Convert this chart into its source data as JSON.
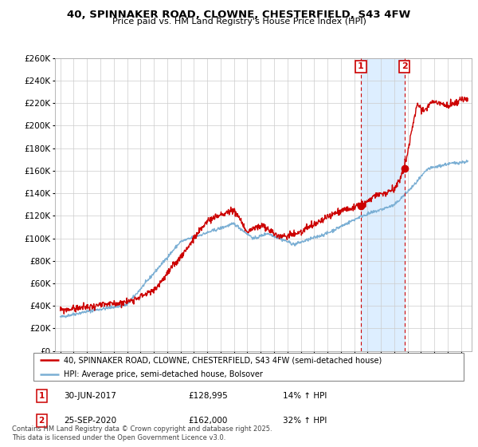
{
  "title_line1": "40, SPINNAKER ROAD, CLOWNE, CHESTERFIELD, S43 4FW",
  "title_line2": "Price paid vs. HM Land Registry's House Price Index (HPI)",
  "red_label": "40, SPINNAKER ROAD, CLOWNE, CHESTERFIELD, S43 4FW (semi-detached house)",
  "blue_label": "HPI: Average price, semi-detached house, Bolsover",
  "footnote": "Contains HM Land Registry data © Crown copyright and database right 2025.\nThis data is licensed under the Open Government Licence v3.0.",
  "event1_date": "30-JUN-2017",
  "event1_price": 128995,
  "event1_price_str": "£128,995",
  "event1_hpi": "14% ↑ HPI",
  "event2_date": "25-SEP-2020",
  "event2_price": 162000,
  "event2_price_str": "£162,000",
  "event2_hpi": "32% ↑ HPI",
  "ylim_max": 260000,
  "ytick_step": 20000,
  "red_color": "#cc0000",
  "blue_color": "#7bafd4",
  "grid_color": "#cccccc",
  "span_color": "#ddeeff",
  "event1_x": 2017.5,
  "event2_x": 2020.75,
  "xmin": 1994.6,
  "xmax": 2025.8
}
